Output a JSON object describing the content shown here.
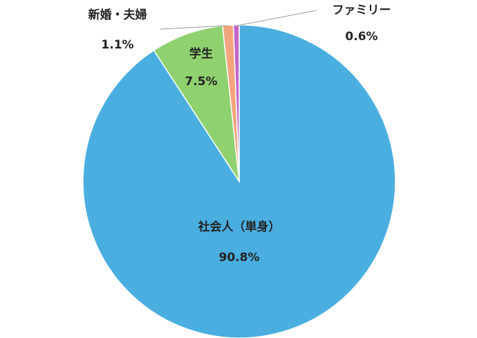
{
  "chart_data": {
    "type": "pie",
    "categories": [
      "社会人（単身）",
      "学生",
      "新婚・夫婦",
      "ファミリー"
    ],
    "values": [
      90.8,
      7.5,
      1.1,
      0.6
    ],
    "value_labels": [
      "90.8%",
      "7.5%",
      "1.1%",
      "0.6%"
    ],
    "colors": [
      "#4aaee0",
      "#8fd16f",
      "#f2a57e",
      "#c066c8"
    ]
  }
}
